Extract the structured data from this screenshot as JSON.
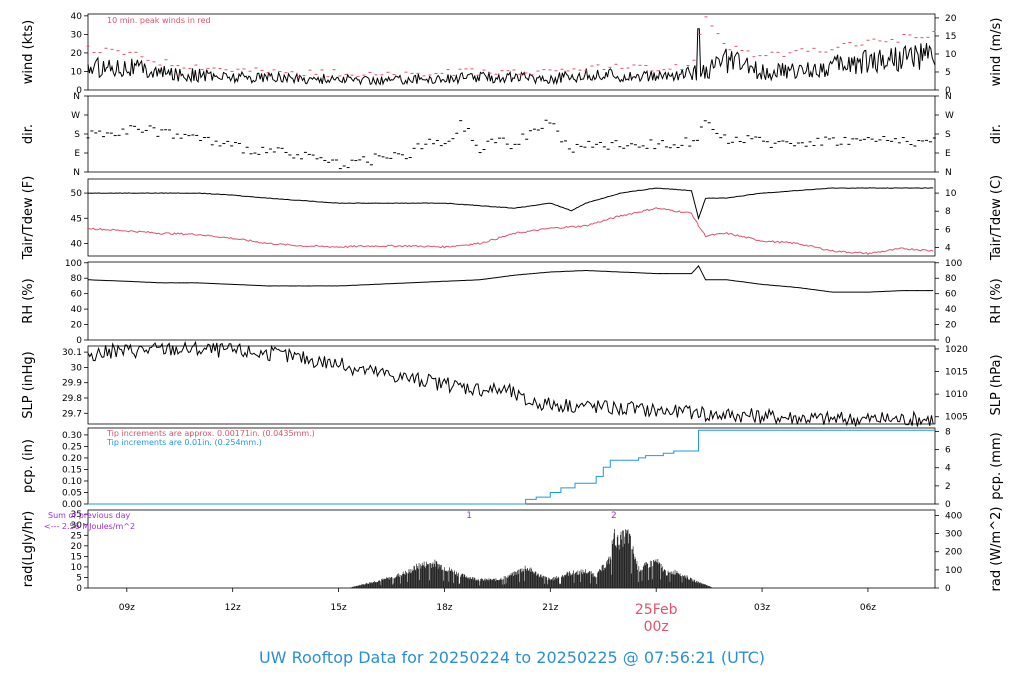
{
  "footer": {
    "title": "UW Rooftop Data for 20250224  to  20250225 @ 07:56:21  (UTC)"
  },
  "x_axis": {
    "tick_labels": [
      "09z",
      "12z",
      "15z",
      "18z",
      "21z",
      "03z",
      "06z"
    ],
    "tick_hours": [
      9,
      12,
      15,
      18,
      21,
      27,
      30
    ],
    "midnight_day": "25Feb",
    "midnight_hour": "00z",
    "range_hours": [
      7.9,
      31.9
    ]
  },
  "colors": {
    "black": "#000000",
    "red": "#df536b",
    "blue": "#2297e6",
    "purple": "#9b30d9",
    "footer": "#2b8fd6"
  },
  "chart_data": [
    {
      "type": "line",
      "ylabel_left": "wind (kts)",
      "ylabel_right": "wind (m/s)",
      "ylim": [
        0,
        41
      ],
      "yticks_left": [
        0,
        10,
        20,
        30,
        40
      ],
      "yticks_right": [
        0,
        5,
        10,
        15,
        20
      ],
      "right_scale_factor": 0.5144,
      "annotation": "10 min. peak winds in red",
      "series": [
        {
          "name": "wind speed",
          "color": "#000000",
          "x": [
            7.9,
            9,
            10,
            11,
            12,
            13,
            14,
            15,
            16,
            17,
            18,
            19,
            20,
            21,
            22,
            23,
            24,
            25,
            25.4,
            26,
            27,
            28,
            29,
            30,
            31,
            31.9
          ],
          "y": [
            12,
            13,
            9,
            8,
            7,
            7,
            6,
            6,
            5,
            6,
            6,
            7,
            7,
            6,
            8,
            8,
            7,
            9,
            10,
            16,
            10,
            10,
            13,
            16,
            18,
            18
          ]
        },
        {
          "name": "10 min. peak winds",
          "color": "#df536b",
          "x": [
            7.9,
            9,
            10,
            11,
            12,
            13,
            14,
            15,
            16,
            17,
            18,
            19,
            20,
            21,
            22,
            23,
            24,
            25,
            25.4,
            26,
            27,
            28,
            29,
            30,
            31,
            31.9
          ],
          "y": [
            22,
            20,
            15,
            13,
            11,
            10,
            9,
            9,
            8,
            8,
            9,
            10,
            10,
            9,
            12,
            12,
            11,
            13,
            40,
            24,
            18,
            20,
            22,
            26,
            28,
            30
          ]
        }
      ],
      "spike": {
        "x": 25.2,
        "y": 33
      }
    },
    {
      "type": "scatter",
      "ylabel_left": "dir.",
      "ylabel_right": "dir.",
      "ylim": [
        0,
        360
      ],
      "ytick_values": [
        0,
        90,
        180,
        270,
        360
      ],
      "ytick_labels": [
        "N",
        "E",
        "S",
        "W",
        "N"
      ],
      "series": [
        {
          "name": "direction",
          "color": "#000000",
          "x": [
            7.9,
            9,
            10,
            11,
            12,
            13,
            14,
            15,
            16,
            17,
            17.6,
            18,
            18.5,
            19,
            19.5,
            20,
            20.5,
            21,
            21.5,
            22,
            23,
            24,
            25,
            25.4,
            26,
            27,
            28,
            29,
            30,
            31,
            31.9
          ],
          "y": [
            180,
            200,
            190,
            160,
            120,
            100,
            70,
            40,
            60,
            80,
            150,
            110,
            230,
            100,
            160,
            120,
            210,
            240,
            110,
            120,
            130,
            130,
            140,
            220,
            160,
            140,
            140,
            150,
            150,
            150,
            140
          ]
        }
      ]
    },
    {
      "type": "line",
      "ylabel_left": "Tair/Tdew (F)",
      "ylabel_right": "Tair/Tdew (C)",
      "ylim": [
        37.5,
        52.8
      ],
      "yticks_left": [
        40,
        45,
        50
      ],
      "yticks_right": [
        4,
        6,
        8,
        10
      ],
      "series": [
        {
          "name": "air temperature",
          "color": "#000000",
          "x": [
            7.9,
            9,
            10,
            11,
            12,
            13,
            14,
            15,
            16,
            17,
            18,
            19,
            20,
            21,
            21.6,
            22,
            23,
            24,
            25,
            25.2,
            25.4,
            26,
            27,
            28,
            29,
            30,
            31,
            31.9
          ],
          "y": [
            50,
            50,
            50,
            50,
            49.6,
            49,
            48.5,
            48,
            48,
            48,
            48,
            47.5,
            47,
            48,
            46.5,
            48,
            50,
            51,
            50.5,
            45,
            49,
            49,
            50,
            50.5,
            51,
            51,
            51,
            51
          ]
        },
        {
          "name": "dew point",
          "color": "#df536b",
          "x": [
            7.9,
            9,
            10,
            11,
            12,
            13,
            14,
            15,
            16,
            17,
            18,
            19,
            20,
            21,
            22,
            23,
            24,
            25,
            25.2,
            25.4,
            26,
            27,
            28,
            29,
            30,
            31,
            31.9
          ],
          "y": [
            43,
            42.5,
            42,
            41.8,
            41,
            40,
            39.5,
            39.3,
            39.5,
            39.5,
            39.3,
            40,
            42,
            43,
            43.5,
            45.5,
            47,
            46,
            43.5,
            41.5,
            42,
            40.5,
            40,
            38.5,
            38,
            39,
            38.5
          ]
        }
      ]
    },
    {
      "type": "line",
      "ylabel_left": "RH (%)",
      "ylabel_right": "RH (%)",
      "ylim": [
        0,
        101
      ],
      "yticks_left": [
        0,
        20,
        40,
        60,
        80,
        100
      ],
      "yticks_right": [
        0,
        20,
        40,
        60,
        80,
        100
      ],
      "series": [
        {
          "name": "relative humidity",
          "color": "#000000",
          "x": [
            7.9,
            9,
            10,
            11,
            12,
            13,
            14,
            15,
            16,
            17,
            18,
            19,
            20,
            21,
            22,
            23,
            24,
            25,
            25.2,
            25.4,
            26,
            27,
            28,
            29,
            30,
            31,
            31.9
          ],
          "y": [
            78,
            76,
            74,
            74,
            72,
            70,
            70,
            70,
            72,
            74,
            76,
            78,
            84,
            88,
            90,
            88,
            86,
            86,
            96,
            78,
            78,
            72,
            68,
            62,
            62,
            64,
            64
          ]
        }
      ]
    },
    {
      "type": "line",
      "ylabel_left": "SLP (inHg)",
      "ylabel_right": "SLP (hPa)",
      "ylim": [
        29.63,
        30.14
      ],
      "yticks_left": [
        29.7,
        29.8,
        29.9,
        30.0,
        30.1
      ],
      "yticks_right": [
        1005,
        1010,
        1015,
        1020
      ],
      "series": [
        {
          "name": "sea level pressure",
          "color": "#000000",
          "x": [
            7.9,
            9,
            10,
            11,
            12,
            13,
            14,
            15,
            16,
            17,
            18,
            19,
            19.8,
            20.3,
            21,
            22,
            23,
            24,
            25,
            25.2,
            25.4,
            26,
            27,
            28,
            29,
            30,
            31,
            31.9
          ],
          "y": [
            30.09,
            30.11,
            30.12,
            30.12,
            30.11,
            30.09,
            30.06,
            30.02,
            29.97,
            29.93,
            29.89,
            29.86,
            29.85,
            29.78,
            29.76,
            29.75,
            29.73,
            29.72,
            29.7,
            29.72,
            29.69,
            29.69,
            29.68,
            29.67,
            29.66,
            29.66,
            29.66,
            29.66
          ]
        }
      ]
    },
    {
      "type": "line",
      "ylabel_left": "pcp. (in)",
      "ylabel_right": "pcp. (mm)",
      "ylim": [
        0,
        0.33
      ],
      "yticks_left": [
        0.0,
        0.05,
        0.1,
        0.15,
        0.2,
        0.25,
        0.3
      ],
      "yticks_left_labels": [
        "0.00",
        "0.05",
        "0.10",
        "0.15",
        "0.20",
        "0.25",
        "0.30"
      ],
      "yticks_right": [
        0,
        2,
        4,
        6,
        8
      ],
      "annotations": [
        {
          "text": "Tip increments are approx. 0.00171in. (0.0435mm.)",
          "color": "#df536b"
        },
        {
          "text": "Tip increments are 0.01in. (0.254mm.)",
          "color": "#2297e6"
        }
      ],
      "series": [
        {
          "name": "precipitation",
          "color": "#2297e6",
          "x": [
            7.9,
            19.7,
            20.3,
            20.6,
            21,
            21.3,
            21.7,
            22.3,
            22.5,
            22.7,
            23.5,
            23.7,
            24.2,
            24.5,
            25.1,
            25.2,
            31.9
          ],
          "y": [
            0,
            0,
            0.02,
            0.03,
            0.05,
            0.07,
            0.09,
            0.12,
            0.16,
            0.19,
            0.2,
            0.21,
            0.22,
            0.23,
            0.23,
            0.32,
            0.32
          ]
        }
      ]
    },
    {
      "type": "area",
      "ylabel_left": "rad(Lgly/hr)",
      "ylabel_right": "rad (W/m^2)",
      "ylim": [
        0,
        37
      ],
      "yticks_left": [
        0,
        5,
        10,
        15,
        20,
        25,
        30,
        35
      ],
      "yticks_right": [
        0,
        100,
        200,
        300,
        400
      ],
      "annotations": [
        {
          "text": "Sum of previous day",
          "color": "#9b30d9"
        },
        {
          "text": "<--- 2.56 MJoules/m^2",
          "color": "#9b30d9"
        }
      ],
      "markers": [
        {
          "label": "1",
          "x": 18.7
        },
        {
          "label": "2",
          "x": 22.8
        }
      ],
      "series": [
        {
          "name": "radiation",
          "color": "#000000",
          "x": [
            15.3,
            15.5,
            16,
            16.5,
            17,
            17.3,
            17.7,
            18,
            18.5,
            19,
            19.5,
            20,
            20.3,
            20.6,
            21,
            21.5,
            22,
            22.3,
            22.7,
            22.8,
            22.9,
            23.2,
            23.5,
            24,
            24.3,
            24.6,
            25,
            25.5,
            25.6
          ],
          "y": [
            0,
            1,
            3,
            5,
            8,
            11,
            12,
            10,
            6,
            4,
            4,
            7,
            10,
            7,
            4,
            7,
            8,
            6,
            14,
            26,
            22,
            26,
            9,
            13,
            7,
            8,
            4,
            1,
            0
          ]
        }
      ]
    }
  ]
}
